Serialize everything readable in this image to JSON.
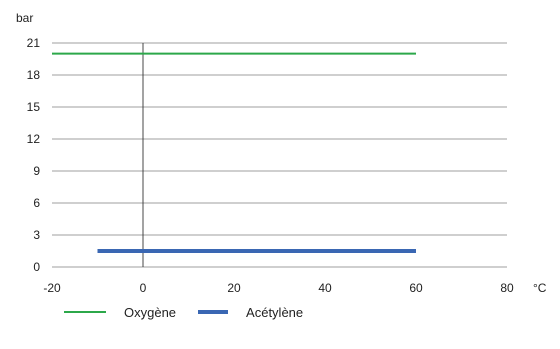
{
  "chart_data": {
    "type": "line",
    "y_unit": "bar",
    "x_unit": "°C",
    "xlim": [
      -20,
      80
    ],
    "ylim": [
      0,
      21
    ],
    "x_ticks": [
      -20,
      0,
      20,
      40,
      60,
      80
    ],
    "y_ticks": [
      0,
      3,
      6,
      9,
      12,
      15,
      18,
      21
    ],
    "grid": "horizontal",
    "legend_position": "bottom-left",
    "series": [
      {
        "name": "Oxygène",
        "color": "#2ca84a",
        "x": [
          -20,
          60
        ],
        "y": [
          20,
          20
        ]
      },
      {
        "name": "Acétylène",
        "color": "#3a67b3",
        "x": [
          -10,
          60
        ],
        "y": [
          1.5,
          1.5
        ]
      }
    ]
  }
}
